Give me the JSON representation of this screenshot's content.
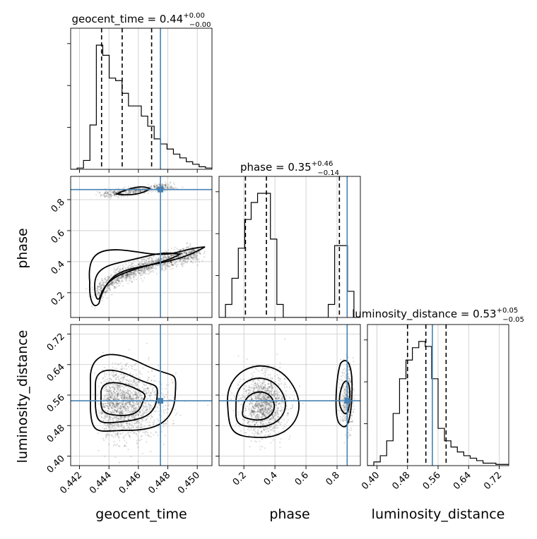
{
  "chart_data": {
    "type": "corner",
    "params": [
      {
        "name": "geocent_time",
        "xlim": [
          0.4414,
          0.451
        ],
        "ticks": [
          0.442,
          0.444,
          0.446,
          0.448,
          0.45
        ],
        "tick_labels": [
          "0.442",
          "0.444",
          "0.446",
          "0.448",
          "0.450"
        ]
      },
      {
        "name": "phase",
        "xlim": [
          0.04,
          0.95
        ],
        "ticks": [
          0.2,
          0.4,
          0.6,
          0.8
        ],
        "tick_labels": [
          "0.2",
          "0.4",
          "0.6",
          "0.8"
        ]
      },
      {
        "name": "luminosity_distance",
        "xlim": [
          0.375,
          0.745
        ],
        "ticks": [
          0.4,
          0.48,
          0.56,
          0.64,
          0.72
        ],
        "tick_labels": [
          "0.40",
          "0.48",
          "0.56",
          "0.64",
          "0.72"
        ]
      }
    ],
    "truths": [
      0.4475,
      0.865,
      0.545
    ],
    "titles": [
      {
        "main": "geocent_time = 0.44",
        "sup": "+0.00",
        "sub": "−0.00"
      },
      {
        "main": "phase = 0.35",
        "sup": "+0.46",
        "sub": "−0.14"
      },
      {
        "main": "luminosity_distance = 0.53",
        "sup": "+0.05",
        "sub": "−0.05"
      }
    ],
    "quantiles": [
      [
        0.4435,
        0.4449,
        0.4469
      ],
      [
        0.21,
        0.345,
        0.815
      ],
      [
        0.48,
        0.528,
        0.581
      ]
    ],
    "histograms": [
      {
        "edges_start": 0.4414,
        "edges_end": 0.451,
        "counts": [
          0,
          1,
          7,
          35,
          98,
          90,
          72,
          70,
          60,
          50,
          50,
          42,
          34,
          24,
          20,
          16,
          12,
          9,
          6,
          4,
          2,
          1
        ]
      },
      {
        "edges_start": 0.04,
        "edges_end": 0.95,
        "counts": [
          0,
          10,
          30,
          53,
          75,
          88,
          95,
          95,
          60,
          10,
          0,
          0,
          0,
          0,
          0,
          0,
          0,
          10,
          55,
          55,
          20,
          0
        ]
      },
      {
        "edges_start": 0.375,
        "edges_end": 0.745,
        "counts": [
          0,
          3,
          8,
          20,
          42,
          70,
          85,
          95,
          100,
          96,
          70,
          30,
          20,
          15,
          11,
          8,
          6,
          4,
          2,
          2,
          1,
          1
        ]
      }
    ],
    "grid": true,
    "truth_color": "#4682b4",
    "line_color": "#000000"
  }
}
